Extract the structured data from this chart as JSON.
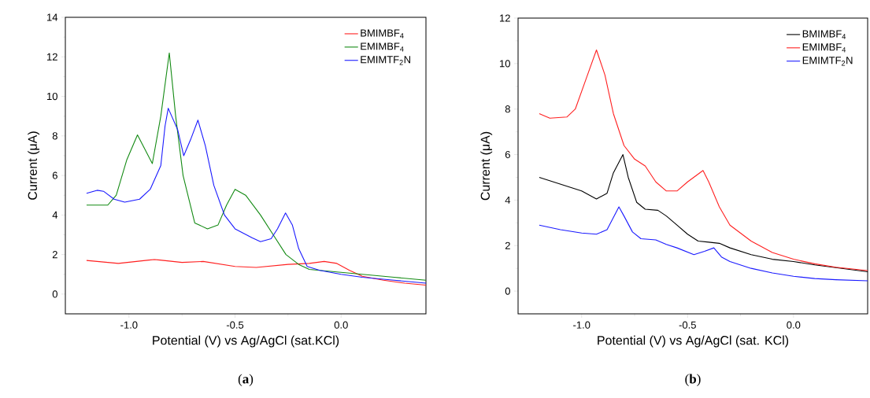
{
  "chart_data": [
    {
      "type": "line",
      "title": "(**a**)",
      "xlabel": "Potential (V) vs Ag/AgCl (sat.KCl)",
      "ylabel": "Current (μA)",
      "xlim": [
        -1.3,
        0.4
      ],
      "ylim": [
        -1,
        14
      ],
      "xticks": [
        {
          "value": -1.0,
          "label": "-1.0"
        },
        {
          "value": -0.5,
          "label": "-0.5"
        },
        {
          "value": 0.0,
          "label": "0.0"
        }
      ],
      "yticks": [
        0,
        2,
        4,
        6,
        8,
        10,
        12,
        14
      ],
      "legend": "top right",
      "marker": "none",
      "line_style": "solid",
      "series": [
        {
          "name": "BMIMBF$_{4}$",
          "color": "#ff2020",
          "x": [
            -1.2,
            -1.05,
            -0.88,
            -0.75,
            -0.65,
            -0.5,
            -0.4,
            -0.25,
            -0.15,
            -0.08,
            -0.02,
            0.04,
            0.1,
            0.2,
            0.3,
            0.4
          ],
          "values": [
            1.7,
            1.55,
            1.75,
            1.6,
            1.65,
            1.4,
            1.35,
            1.5,
            1.55,
            1.65,
            1.55,
            1.2,
            0.9,
            0.7,
            0.55,
            0.45
          ]
        },
        {
          "name": "EMIMBF$_{4}$",
          "color": "#138a13",
          "x": [
            -1.2,
            -1.1,
            -1.06,
            -1.01,
            -0.96,
            -0.89,
            -0.85,
            -0.81,
            -0.78,
            -0.745,
            -0.69,
            -0.63,
            -0.58,
            -0.54,
            -0.5,
            -0.45,
            -0.38,
            -0.32,
            -0.26,
            -0.2,
            -0.15,
            0.1,
            0.25,
            0.4
          ],
          "values": [
            4.5,
            4.5,
            5.0,
            6.8,
            8.05,
            6.6,
            9.0,
            12.2,
            9.0,
            6.0,
            3.6,
            3.3,
            3.5,
            4.5,
            5.3,
            5.0,
            4.0,
            3.0,
            2.0,
            1.5,
            1.25,
            1.0,
            0.85,
            0.7
          ]
        },
        {
          "name": "EMIMTF$_{2}$N",
          "color": "#1a1aff",
          "x": [
            -1.2,
            -1.15,
            -1.12,
            -1.07,
            -1.02,
            -0.95,
            -0.9,
            -0.85,
            -0.83,
            -0.815,
            -0.77,
            -0.742,
            -0.71,
            -0.675,
            -0.64,
            -0.6,
            -0.55,
            -0.5,
            -0.42,
            -0.38,
            -0.33,
            -0.3,
            -0.262,
            -0.23,
            -0.2,
            -0.16,
            -0.1,
            0.0,
            0.1,
            0.25,
            0.4
          ],
          "values": [
            5.1,
            5.25,
            5.2,
            4.8,
            4.65,
            4.8,
            5.3,
            6.5,
            8.5,
            9.4,
            8.3,
            7.0,
            7.8,
            8.8,
            7.5,
            5.5,
            4.0,
            3.3,
            2.85,
            2.65,
            2.8,
            3.3,
            4.1,
            3.5,
            2.3,
            1.4,
            1.2,
            1.0,
            0.85,
            0.7,
            0.55
          ]
        }
      ]
    },
    {
      "type": "line",
      "title": "(**b**)",
      "xlabel": "Potential (V) vs Ag/AgCl (sat. KCl)",
      "ylabel": "Current (μA)",
      "xlim": [
        -1.3,
        0.35
      ],
      "ylim": [
        -1,
        12
      ],
      "xticks": [
        {
          "value": -1.0,
          "label": "-1.0"
        },
        {
          "value": -0.5,
          "label": "-0.5"
        },
        {
          "value": 0.0,
          "label": "0.0"
        }
      ],
      "yticks": [
        0,
        2,
        4,
        6,
        8,
        10,
        12
      ],
      "legend": "top right",
      "marker": "none",
      "line_style": "solid",
      "series": [
        {
          "name": "BMIMBF$_{4}$",
          "color": "#000000",
          "x": [
            -1.2,
            -1.1,
            -1.0,
            -0.93,
            -0.88,
            -0.85,
            -0.805,
            -0.78,
            -0.74,
            -0.7,
            -0.64,
            -0.6,
            -0.55,
            -0.5,
            -0.45,
            -0.4,
            -0.35,
            -0.3,
            -0.2,
            -0.1,
            0.0,
            0.1,
            0.35
          ],
          "values": [
            5.0,
            4.7,
            4.4,
            4.05,
            4.3,
            5.2,
            6.0,
            5.0,
            3.9,
            3.6,
            3.55,
            3.3,
            2.9,
            2.5,
            2.2,
            2.15,
            2.1,
            1.9,
            1.6,
            1.4,
            1.3,
            1.15,
            0.85
          ]
        },
        {
          "name": "EMIMBF$_{4}$",
          "color": "#ff2020",
          "x": [
            -1.2,
            -1.15,
            -1.07,
            -1.03,
            -0.98,
            -0.93,
            -0.89,
            -0.85,
            -0.8,
            -0.75,
            -0.7,
            -0.65,
            -0.6,
            -0.55,
            -0.5,
            -0.427,
            -0.4,
            -0.35,
            -0.3,
            -0.2,
            -0.1,
            0.0,
            0.1,
            0.2,
            0.35
          ],
          "values": [
            7.8,
            7.6,
            7.65,
            8.0,
            9.3,
            10.6,
            9.5,
            7.8,
            6.4,
            5.8,
            5.5,
            4.8,
            4.4,
            4.4,
            4.8,
            5.3,
            4.8,
            3.7,
            2.9,
            2.2,
            1.7,
            1.4,
            1.2,
            1.05,
            0.9
          ]
        },
        {
          "name": "EMIMTF$_{2}$N",
          "color": "#1a1aff",
          "x": [
            -1.2,
            -1.1,
            -1.0,
            -0.93,
            -0.88,
            -0.824,
            -0.8,
            -0.76,
            -0.72,
            -0.65,
            -0.6,
            -0.55,
            -0.47,
            -0.42,
            -0.376,
            -0.34,
            -0.3,
            -0.2,
            -0.1,
            0.0,
            0.1,
            0.2,
            0.35
          ],
          "values": [
            2.9,
            2.7,
            2.55,
            2.5,
            2.7,
            3.7,
            3.3,
            2.6,
            2.3,
            2.25,
            2.05,
            1.9,
            1.6,
            1.75,
            1.9,
            1.5,
            1.3,
            1.0,
            0.8,
            0.65,
            0.55,
            0.5,
            0.45
          ]
        }
      ]
    }
  ]
}
